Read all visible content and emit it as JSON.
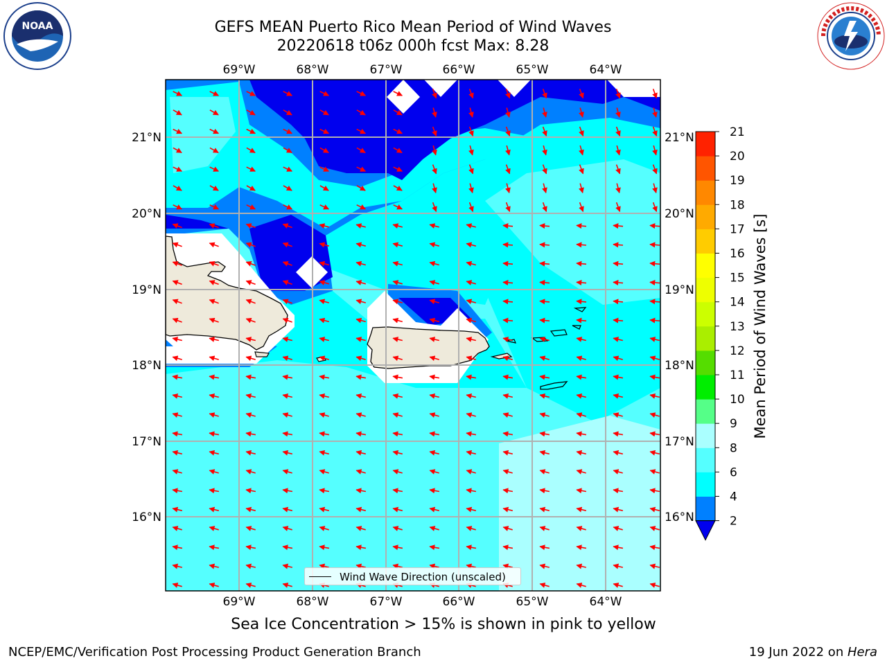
{
  "title": {
    "line1": "GEFS MEAN Puerto Rico Mean Period of Wind Waves",
    "line2": "20220618 t06z 000h fcst   Max: 8.28"
  },
  "map": {
    "lon_labels": [
      "69°W",
      "68°W",
      "67°W",
      "66°W",
      "65°W",
      "64°W"
    ],
    "lat_labels": [
      "21°N",
      "20°N",
      "19°N",
      "18°N",
      "17°N",
      "16°N"
    ],
    "legend_label": "Wind Wave Direction (unscaled)",
    "arrow_color": "#ff0000",
    "land_color": "#eeeadb"
  },
  "colorbar": {
    "title": "Mean Period of Wind Waves [s]",
    "ticks": [
      "2",
      "4",
      "6",
      "8",
      "9",
      "10",
      "11",
      "12",
      "13",
      "14",
      "15",
      "16",
      "17",
      "18",
      "19",
      "20",
      "21"
    ],
    "colors": [
      "#0000ee",
      "#0080ff",
      "#00ffff",
      "#55ffff",
      "#aaffff",
      "#55ff88",
      "#00ee00",
      "#55dd00",
      "#aaee00",
      "#ccff00",
      "#eeff00",
      "#ffff00",
      "#ffcc00",
      "#ffaa00",
      "#ff8800",
      "#ff5500",
      "#ff2200",
      "#ff0000"
    ]
  },
  "subtitle": "Sea Ice Concentration > 15% is shown in pink to yellow",
  "footer": {
    "left": "NCEP/EMC/Verification Post Processing Product Generation Branch",
    "right_date": "19 Jun 2022 on ",
    "right_host": "Hera"
  }
}
